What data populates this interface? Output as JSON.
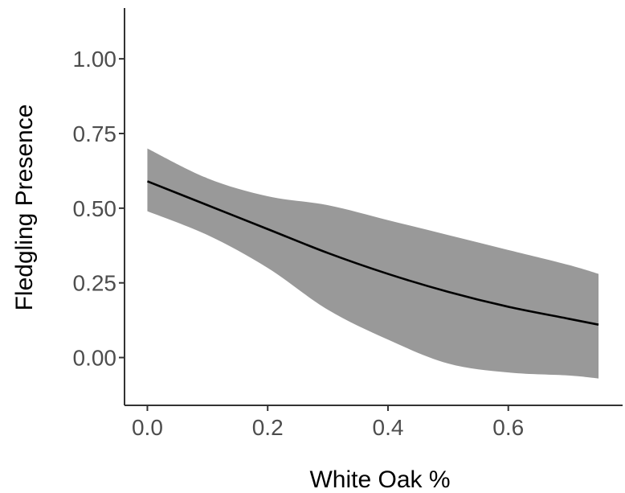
{
  "chart_data": {
    "type": "line",
    "title": "",
    "xlabel": "White Oak %",
    "ylabel": "Fledgling Presence",
    "xlim": [
      -0.038,
      0.79
    ],
    "ylim": [
      -0.16,
      1.17
    ],
    "x_ticks": [
      0.0,
      0.2,
      0.4,
      0.6
    ],
    "x_tick_labels": [
      "0.0",
      "0.2",
      "0.4",
      "0.6"
    ],
    "y_ticks": [
      0.0,
      0.25,
      0.5,
      0.75,
      1.0
    ],
    "y_tick_labels": [
      "0.00",
      "0.25",
      "0.50",
      "0.75",
      "1.00"
    ],
    "grid": false,
    "series": [
      {
        "x": [
          0.0,
          0.1,
          0.2,
          0.3,
          0.4,
          0.5,
          0.6,
          0.7,
          0.75
        ],
        "y": [
          0.59,
          0.51,
          0.43,
          0.35,
          0.28,
          0.22,
          0.17,
          0.13,
          0.11
        ],
        "ci_lower": [
          0.49,
          0.41,
          0.3,
          0.16,
          0.06,
          -0.02,
          -0.05,
          -0.06,
          -0.07
        ],
        "ci_upper": [
          0.7,
          0.6,
          0.54,
          0.51,
          0.46,
          0.41,
          0.36,
          0.31,
          0.28
        ]
      }
    ],
    "colors": {
      "line": "#000000",
      "ribbon": "#999999",
      "axis": "#333333",
      "tick_text": "#4d4d4d"
    }
  }
}
